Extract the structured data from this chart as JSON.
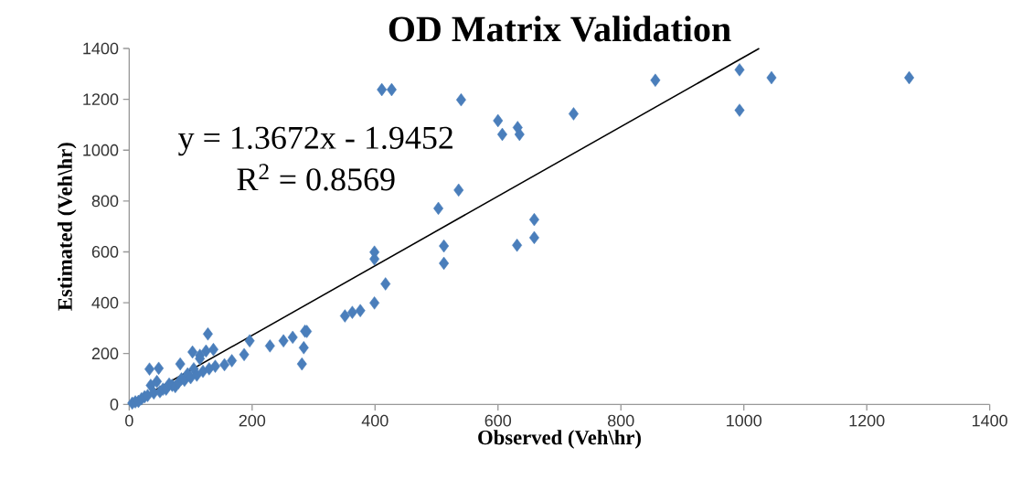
{
  "chart_data": {
    "type": "scatter",
    "title": "OD Matrix Validation",
    "xlabel": "Observed (Veh\\hr)",
    "ylabel": "Estimated (Veh\\hr)",
    "annotations": [
      "y = 1.3672x - 1.9452",
      "R$^{2}$ = 0.8569"
    ],
    "grid": false,
    "xlim": [
      0,
      1400
    ],
    "ylim": [
      0,
      1400
    ],
    "xticks": [
      0,
      200,
      400,
      600,
      800,
      1000,
      1200,
      1400
    ],
    "yticks": [
      0,
      200,
      400,
      600,
      800,
      1000,
      1200,
      1400
    ],
    "series": [
      {
        "marker": "diamond",
        "color": "#4a7ebb",
        "x": [
          411,
          427,
          540,
          600,
          607,
          632,
          635,
          856,
          993,
          993,
          1045,
          1269,
          723,
          503,
          536,
          512,
          512,
          399,
          399,
          659,
          659,
          631,
          417,
          399,
          351,
          363,
          376,
          289,
          128,
          196,
          229,
          251,
          266,
          286,
          284,
          281,
          187,
          167,
          155,
          115,
          137,
          103,
          83,
          33,
          48,
          5,
          10,
          15,
          20,
          25,
          30,
          35,
          40,
          45,
          50,
          55,
          60,
          65,
          70,
          75,
          80,
          85,
          90,
          95,
          100,
          105,
          110,
          115,
          120,
          125,
          130,
          140
        ],
        "values": [
          1238,
          1238,
          1198,
          1116,
          1062,
          1089,
          1062,
          1275,
          1316,
          1157,
          1285,
          1285,
          1143,
          771,
          843,
          623,
          555,
          572,
          599,
          727,
          656,
          626,
          474,
          399,
          348,
          362,
          369,
          287,
          277,
          250,
          230,
          250,
          264,
          288,
          223,
          159,
          196,
          172,
          156,
          193,
          216,
          206,
          159,
          139,
          142,
          5,
          10,
          12,
          22,
          30,
          35,
          75,
          45,
          90,
          50,
          60,
          60,
          80,
          75,
          70,
          85,
          100,
          95,
          120,
          105,
          140,
          115,
          180,
          130,
          210,
          140,
          150
        ]
      },
      {
        "type": "line",
        "color": "#000000",
        "line_style": "solid",
        "x": [
          2,
          1025
        ],
        "values": [
          1,
          1400
        ]
      }
    ]
  }
}
